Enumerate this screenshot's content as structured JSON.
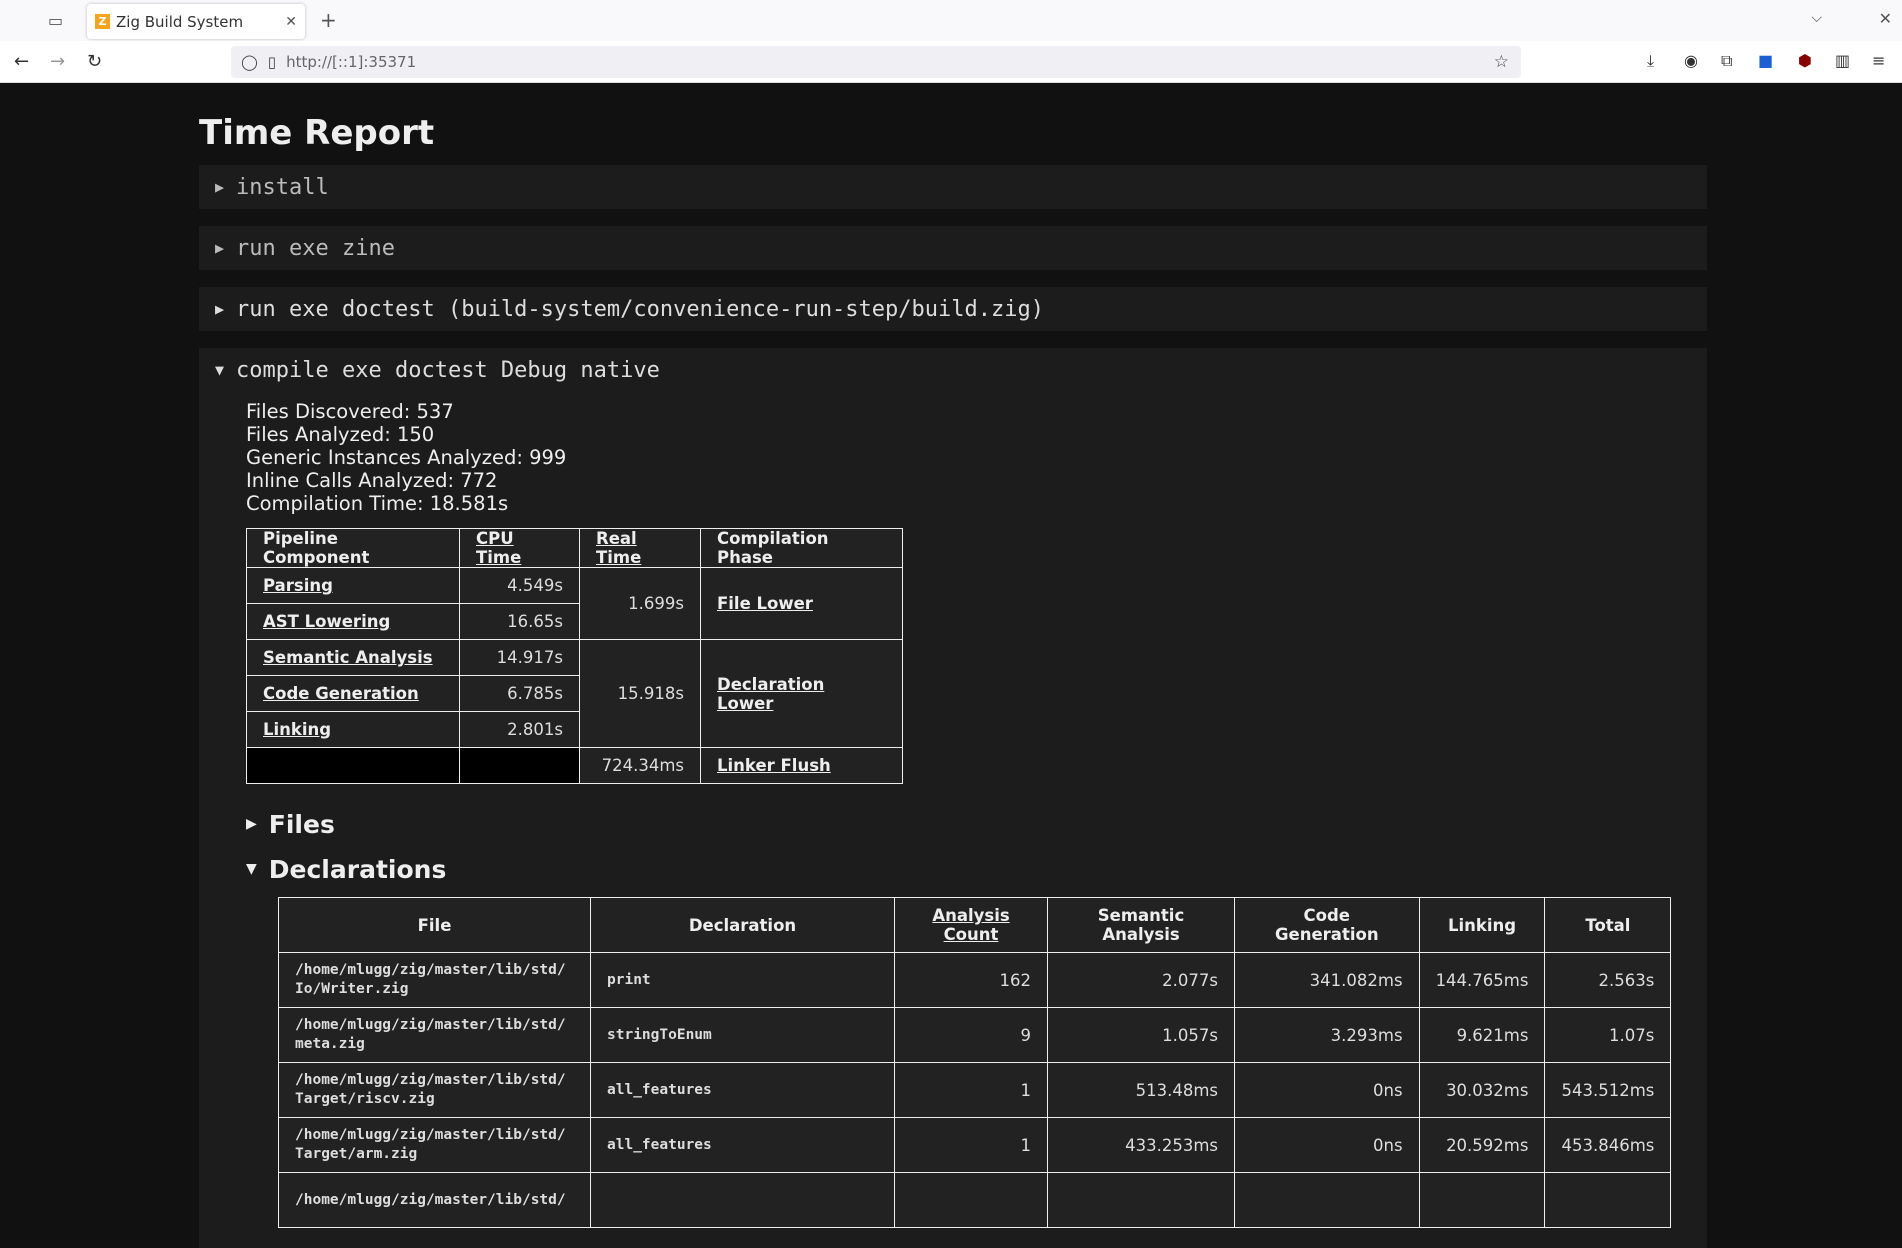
{
  "browser": {
    "tab_title": "Zig Build System",
    "url": "http://[::1]:35371"
  },
  "page": {
    "title": "Time Report"
  },
  "steps": [
    {
      "label": "install",
      "open": false
    },
    {
      "label": "run exe zine",
      "open": false
    },
    {
      "label": "run exe doctest (build-system/convenience-run-step/build.zig)",
      "open": false
    },
    {
      "label": "compile exe doctest Debug native",
      "open": true
    }
  ],
  "stats": [
    "Files Discovered: 537",
    "Files Analyzed: 150",
    "Generic Instances Analyzed: 999",
    "Inline Calls Analyzed: 772",
    "Compilation Time: 18.581s"
  ],
  "pipeline": {
    "headers": [
      "Pipeline Component",
      "CPU Time",
      "Real Time",
      "Compilation Phase"
    ],
    "components": [
      {
        "name": "Parsing",
        "cpu": "4.549s"
      },
      {
        "name": "AST Lowering",
        "cpu": "16.65s"
      },
      {
        "name": "Semantic Analysis",
        "cpu": "14.917s"
      },
      {
        "name": "Code Generation",
        "cpu": "6.785s"
      },
      {
        "name": "Linking",
        "cpu": "2.801s"
      }
    ],
    "phases": [
      {
        "real": "1.699s",
        "name": "File Lower"
      },
      {
        "real": "15.918s",
        "name": "Declaration Lower"
      },
      {
        "real": "724.34ms",
        "name": "Linker Flush"
      }
    ]
  },
  "sections": {
    "files": "Files",
    "declarations": "Declarations"
  },
  "decls": {
    "headers": [
      "File",
      "Declaration",
      "Analysis Count",
      "Semantic Analysis",
      "Code Generation",
      "Linking",
      "Total"
    ],
    "rows": [
      [
        "/home/mlugg/zig/master/lib/std/ Io/Writer.zig",
        "print",
        "162",
        "2.077s",
        "341.082ms",
        "144.765ms",
        "2.563s"
      ],
      [
        "/home/mlugg/zig/master/lib/std/ meta.zig",
        "stringToEnum",
        "9",
        "1.057s",
        "3.293ms",
        "9.621ms",
        "1.07s"
      ],
      [
        "/home/mlugg/zig/master/lib/std/ Target/riscv.zig",
        "all_features",
        "1",
        "513.48ms",
        "0ns",
        "30.032ms",
        "543.512ms"
      ],
      [
        "/home/mlugg/zig/master/lib/std/ Target/arm.zig",
        "all_features",
        "1",
        "433.253ms",
        "0ns",
        "20.592ms",
        "453.846ms"
      ],
      [
        "/home/mlugg/zig/master/lib/std/",
        "",
        "",
        "",
        "",
        "",
        ""
      ]
    ]
  }
}
